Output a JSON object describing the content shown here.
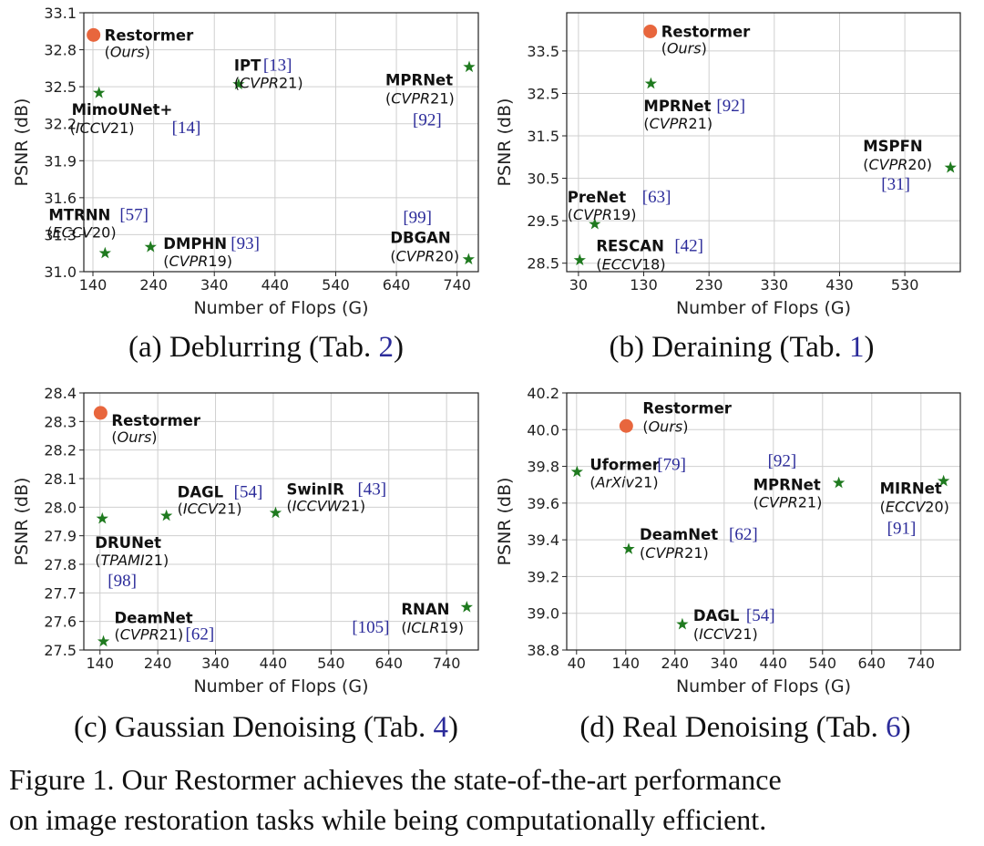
{
  "colors": {
    "ours": "#e8663d",
    "others": "#1f7a1f",
    "ref": "#2b2b9a"
  },
  "chart_data": [
    {
      "type": "scatter",
      "id": "a",
      "title": "Deblurring",
      "caption": {
        "prefix": "(a) Deblurring (Tab. ",
        "ref": "2",
        "suffix": ")"
      },
      "xlabel": "Number of Flops (G)",
      "ylabel": "PSNR (dB)",
      "xlim": [
        125,
        775
      ],
      "ylim": [
        31.0,
        33.1
      ],
      "xticks": [
        140,
        240,
        340,
        440,
        540,
        640,
        740
      ],
      "yticks": [
        31.0,
        31.3,
        31.6,
        31.9,
        32.2,
        32.5,
        32.8,
        33.1
      ],
      "ytick_labels": [
        "31.0",
        "31.3",
        "31.6",
        "31.9",
        "32.2",
        "32.5",
        "32.8",
        "33.1"
      ],
      "points": [
        {
          "name": "Restormer",
          "venue": "Ours",
          "ref": "",
          "x": 141,
          "y": 32.92,
          "ours": true
        },
        {
          "name": "MimoUNet+",
          "venue": "ICCV21",
          "ref": "[14]",
          "x": 150,
          "y": 32.45
        },
        {
          "name": "IPT",
          "venue": "CVPR21",
          "ref": "[13]",
          "x": 380,
          "y": 32.52
        },
        {
          "name": "MPRNet",
          "venue": "CVPR21",
          "ref": "[92]",
          "x": 760,
          "y": 32.66
        },
        {
          "name": "MTRNN",
          "venue": "ECCV20",
          "ref": "[57]",
          "x": 160,
          "y": 31.15
        },
        {
          "name": "DMPHN",
          "venue": "CVPR19",
          "ref": "[93]",
          "x": 235,
          "y": 31.2
        },
        {
          "name": "DBGAN",
          "venue": "CVPR20",
          "ref": "[99]",
          "x": 759,
          "y": 31.1
        }
      ]
    },
    {
      "type": "scatter",
      "id": "b",
      "title": "Deraining",
      "caption": {
        "prefix": "(b) Deraining (Tab. ",
        "ref": "1",
        "suffix": ")"
      },
      "xlabel": "Number of Flops (G)",
      "ylabel": "PSNR (dB)",
      "xlim": [
        12,
        615
      ],
      "ylim": [
        28.3,
        34.4
      ],
      "xticks": [
        30,
        130,
        230,
        330,
        430,
        530
      ],
      "yticks": [
        28.5,
        29.5,
        30.5,
        31.5,
        32.5,
        33.5
      ],
      "ytick_labels": [
        "28.5",
        "29.5",
        "30.5",
        "31.5",
        "32.5",
        "33.5"
      ],
      "points": [
        {
          "name": "Restormer",
          "venue": "Ours",
          "ref": "",
          "x": 140,
          "y": 33.96,
          "ours": true
        },
        {
          "name": "MPRNet",
          "venue": "CVPR21",
          "ref": "[92]",
          "x": 141,
          "y": 32.73
        },
        {
          "name": "MSPFN",
          "venue": "CVPR20",
          "ref": "[31]",
          "x": 600,
          "y": 30.75
        },
        {
          "name": "PreNet",
          "venue": "CVPR19",
          "ref": "[63]",
          "x": 55,
          "y": 29.42
        },
        {
          "name": "RESCAN",
          "venue": "ECCV18",
          "ref": "[42]",
          "x": 32,
          "y": 28.57
        }
      ]
    },
    {
      "type": "scatter",
      "id": "c",
      "title": "Gaussian Denoising",
      "caption": {
        "prefix": "(c) Gaussian Denoising (Tab. ",
        "ref": "4",
        "suffix": ")"
      },
      "xlabel": "Number of Flops (G)",
      "ylabel": "PSNR (dB)",
      "xlim": [
        112,
        795
      ],
      "ylim": [
        27.5,
        28.4
      ],
      "xticks": [
        140,
        240,
        340,
        440,
        540,
        640,
        740
      ],
      "yticks": [
        27.5,
        27.6,
        27.7,
        27.8,
        27.9,
        28.0,
        28.1,
        28.2,
        28.3,
        28.4
      ],
      "ytick_labels": [
        "27.5",
        "27.6",
        "27.7",
        "27.8",
        "27.9",
        "28.0",
        "28.1",
        "28.2",
        "28.3",
        "28.4"
      ],
      "points": [
        {
          "name": "Restormer",
          "venue": "Ours",
          "ref": "",
          "x": 141,
          "y": 28.33,
          "ours": true
        },
        {
          "name": "DRUNet",
          "venue": "TPAMI21",
          "ref": "[98]",
          "x": 144,
          "y": 27.96
        },
        {
          "name": "DAGL",
          "venue": "ICCV21",
          "ref": "[54]",
          "x": 255,
          "y": 27.97
        },
        {
          "name": "SwinIR",
          "venue": "ICCVW21",
          "ref": "[43]",
          "x": 444,
          "y": 27.98
        },
        {
          "name": "DeamNet",
          "venue": "CVPR21",
          "ref": "[62]",
          "x": 146,
          "y": 27.53
        },
        {
          "name": "RNAN",
          "venue": "ICLR19",
          "ref": "[105]",
          "x": 775,
          "y": 27.65
        }
      ]
    },
    {
      "type": "scatter",
      "id": "d",
      "title": "Real Denoising",
      "caption": {
        "prefix": "(d) Real Denoising (Tab. ",
        "ref": "6",
        "suffix": ")"
      },
      "xlabel": "Number of Flops (G)",
      "ylabel": "PSNR (dB)",
      "xlim": [
        20,
        820
      ],
      "ylim": [
        38.8,
        40.2
      ],
      "xticks": [
        40,
        140,
        240,
        340,
        440,
        540,
        640,
        740
      ],
      "yticks": [
        38.8,
        39.0,
        39.2,
        39.4,
        39.6,
        39.8,
        40.0,
        40.2
      ],
      "ytick_labels": [
        "38.8",
        "39.0",
        "39.2",
        "39.4",
        "39.6",
        "39.8",
        "40.0",
        "40.2"
      ],
      "points": [
        {
          "name": "Restormer",
          "venue": "Ours",
          "ref": "",
          "x": 141,
          "y": 40.02,
          "ours": true
        },
        {
          "name": "Uformer",
          "venue": "ArXiv21",
          "ref": "[79]",
          "x": 41,
          "y": 39.77
        },
        {
          "name": "MPRNet",
          "venue": "CVPR21",
          "ref": "[92]",
          "x": 573,
          "y": 39.71
        },
        {
          "name": "MIRNet",
          "venue": "ECCV20",
          "ref": "[91]",
          "x": 786,
          "y": 39.72
        },
        {
          "name": "DeamNet",
          "venue": "CVPR21",
          "ref": "[62]",
          "x": 146,
          "y": 39.35
        },
        {
          "name": "DAGL",
          "venue": "ICCV21",
          "ref": "[54]",
          "x": 255,
          "y": 38.94
        }
      ]
    }
  ],
  "figure_caption": {
    "line1": "Figure 1. Our Restormer achieves the state-of-the-art performance",
    "line2": "on image restoration tasks while being computationally efficient."
  }
}
